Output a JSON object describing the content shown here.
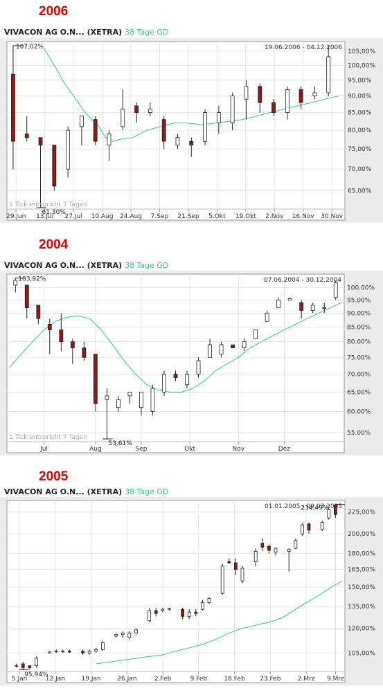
{
  "charts": [
    {
      "year_label": "2006",
      "title": "VIVACON AG O.N... (XETRA)",
      "ma_label": "38 Tage GD",
      "date_range": "19.06.2006 - 04.12.2006",
      "tick_note": "1 Tick entspricht 7 Tagen",
      "high_label": "107,02%",
      "low_label": "61,30%",
      "y_ticks": [
        "65,00%",
        "70,00%",
        "75,00%",
        "80,00%",
        "85,00%",
        "90,00%",
        "95,00%",
        "100,00%",
        "105,00%"
      ],
      "x_ticks": [
        "29.Jun",
        "13.Jul",
        "27.Jul",
        "10.Aug",
        "24.Aug",
        "7.Sep",
        "21.Sep",
        "5.Okt",
        "19.Okt",
        "2.Nov",
        "16.Nov",
        "30.Nov"
      ]
    },
    {
      "year_label": "2004",
      "title": "VIVACON AG O.N... (XETRA)",
      "ma_label": "38 Tage GD",
      "date_range": "07.06.2004 - 30.12.2004",
      "tick_note": "1 Tick entspricht 7 Tagen",
      "high_label": "103,92%",
      "low_label": "53,61%",
      "y_ticks": [
        "55.00%",
        "60.00%",
        "65.00%",
        "70.00%",
        "75.00%",
        "80.00%",
        "85.00%",
        "90.00%",
        "95.00%",
        "100.00%"
      ],
      "x_ticks": [
        "Jul",
        "Aug",
        "Sep",
        "Okt",
        "Nov",
        "Dez"
      ]
    },
    {
      "year_label": "2005",
      "title": "VIVACON AG O.N... (XETRA)",
      "ma_label": "38 Tage GD",
      "date_range": "01.01.2005 - 09.03.2005",
      "tick_note": "",
      "high_label": "234,49%",
      "low_label": "95,94%",
      "y_ticks": [
        "105,00%",
        "120,00%",
        "135,00%",
        "150,00%",
        "165,00%",
        "180,00%",
        "200,00%",
        "225,00%"
      ],
      "x_ticks": [
        "5.Jan",
        "12.Jan",
        "19.Jan",
        "26.Jan",
        "2.Feb",
        "9.Feb",
        "16.Feb",
        "23.Feb",
        "2.Mrz",
        "9.Mrz"
      ]
    }
  ],
  "chart_data": [
    {
      "type": "candlestick",
      "title": "VIVACON AG O.N... (XETRA)",
      "yscale": "log",
      "ylim": [
        61,
        107.5
      ],
      "colors": {
        "up": "#ffffff",
        "down": "#8b1a1a",
        "ma": "#33cc88"
      },
      "candles": [
        {
          "x": 0.5,
          "o": 97,
          "h": 107,
          "l": 70,
          "c": 77
        },
        {
          "x": 2.5,
          "o": 79,
          "h": 84,
          "l": 77,
          "c": 78
        },
        {
          "x": 4.5,
          "o": 78,
          "h": 78,
          "l": 61.3,
          "c": 76
        },
        {
          "x": 6.5,
          "o": 76,
          "h": 76,
          "l": 65,
          "c": 66
        },
        {
          "x": 8.5,
          "o": 70,
          "h": 81,
          "l": 68,
          "c": 80
        },
        {
          "x": 10.5,
          "o": 81,
          "h": 84,
          "l": 76,
          "c": 84
        },
        {
          "x": 12.5,
          "o": 83,
          "h": 84,
          "l": 76,
          "c": 77
        },
        {
          "x": 14.5,
          "o": 76,
          "h": 80,
          "l": 72,
          "c": 79
        },
        {
          "x": 16.5,
          "o": 81,
          "h": 92,
          "l": 80,
          "c": 86
        },
        {
          "x": 18.5,
          "o": 87,
          "h": 88,
          "l": 82,
          "c": 85
        },
        {
          "x": 20.5,
          "o": 85,
          "h": 88,
          "l": 84,
          "c": 86
        },
        {
          "x": 22.5,
          "o": 83,
          "h": 84,
          "l": 75,
          "c": 77
        },
        {
          "x": 24.5,
          "o": 76,
          "h": 79,
          "l": 75,
          "c": 78
        },
        {
          "x": 26.5,
          "o": 77,
          "h": 78,
          "l": 73,
          "c": 76
        },
        {
          "x": 28.5,
          "o": 77,
          "h": 86,
          "l": 76,
          "c": 85
        },
        {
          "x": 30.5,
          "o": 82,
          "h": 87,
          "l": 79,
          "c": 85
        },
        {
          "x": 32.5,
          "o": 82,
          "h": 91,
          "l": 80,
          "c": 90
        },
        {
          "x": 34.5,
          "o": 89,
          "h": 95,
          "l": 83,
          "c": 93
        },
        {
          "x": 36.5,
          "o": 93,
          "h": 94,
          "l": 85,
          "c": 88
        },
        {
          "x": 38.5,
          "o": 88,
          "h": 89,
          "l": 84,
          "c": 85
        },
        {
          "x": 40.5,
          "o": 85,
          "h": 93,
          "l": 83,
          "c": 92
        },
        {
          "x": 42.5,
          "o": 92,
          "h": 93,
          "l": 86,
          "c": 88
        },
        {
          "x": 44.5,
          "o": 90,
          "h": 93,
          "l": 89,
          "c": 91
        },
        {
          "x": 46.5,
          "o": 91,
          "h": 107,
          "l": 90,
          "c": 103
        }
      ],
      "ma": [
        [
          5,
          106
        ],
        [
          6,
          102
        ],
        [
          7,
          98
        ],
        [
          8,
          94
        ],
        [
          9,
          91
        ],
        [
          10,
          88
        ],
        [
          11,
          85
        ],
        [
          12,
          83
        ],
        [
          13,
          81
        ],
        [
          14,
          78
        ],
        [
          15,
          77
        ],
        [
          16,
          77.5
        ],
        [
          18,
          78
        ],
        [
          19,
          79
        ],
        [
          20,
          80
        ],
        [
          22,
          81
        ],
        [
          24,
          82
        ],
        [
          26,
          82
        ],
        [
          28,
          81.5
        ],
        [
          30,
          82
        ],
        [
          32,
          82.5
        ],
        [
          34,
          83
        ],
        [
          36,
          84
        ],
        [
          38,
          85
        ],
        [
          40,
          86
        ],
        [
          42,
          87
        ],
        [
          44,
          88
        ],
        [
          46,
          89
        ],
        [
          48,
          90
        ]
      ],
      "xlim": [
        0,
        48.5
      ]
    },
    {
      "type": "candlestick",
      "title": "VIVACON AG O.N... (XETRA)",
      "yscale": "log",
      "ylim": [
        53,
        104.5
      ],
      "colors": {
        "up": "#ffffff",
        "down": "#8b1a1a",
        "ma": "#33cc88"
      },
      "candles": [
        {
          "x": 1,
          "o": 101,
          "h": 104,
          "l": 98,
          "c": 103
        },
        {
          "x": 3,
          "o": 101,
          "h": 101,
          "l": 88,
          "c": 92
        },
        {
          "x": 5,
          "o": 93,
          "h": 93,
          "l": 86,
          "c": 88
        },
        {
          "x": 7,
          "o": 86,
          "h": 88,
          "l": 76,
          "c": 84
        },
        {
          "x": 9,
          "o": 84,
          "h": 90,
          "l": 77,
          "c": 80
        },
        {
          "x": 11,
          "o": 80,
          "h": 81,
          "l": 73,
          "c": 78
        },
        {
          "x": 13,
          "o": 78,
          "h": 80,
          "l": 74,
          "c": 75
        },
        {
          "x": 15,
          "o": 76,
          "h": 76,
          "l": 60,
          "c": 62
        },
        {
          "x": 17,
          "o": 63,
          "h": 66,
          "l": 53.6,
          "c": 64
        },
        {
          "x": 19,
          "o": 61,
          "h": 64,
          "l": 60,
          "c": 63
        },
        {
          "x": 21,
          "o": 64,
          "h": 65,
          "l": 62,
          "c": 65
        },
        {
          "x": 23,
          "o": 61,
          "h": 65,
          "l": 59,
          "c": 65
        },
        {
          "x": 25,
          "o": 60,
          "h": 67,
          "l": 59,
          "c": 66
        },
        {
          "x": 27,
          "o": 65,
          "h": 71,
          "l": 64,
          "c": 70
        },
        {
          "x": 29,
          "o": 70,
          "h": 71,
          "l": 68,
          "c": 69
        },
        {
          "x": 31,
          "o": 67,
          "h": 71,
          "l": 66,
          "c": 70
        },
        {
          "x": 33,
          "o": 70,
          "h": 75,
          "l": 69,
          "c": 74
        },
        {
          "x": 35,
          "o": 75,
          "h": 81,
          "l": 75,
          "c": 79
        },
        {
          "x": 37,
          "o": 76,
          "h": 80,
          "l": 75,
          "c": 79
        },
        {
          "x": 39,
          "o": 79,
          "h": 79,
          "l": 78,
          "c": 78
        },
        {
          "x": 41,
          "o": 78,
          "h": 81,
          "l": 77,
          "c": 80
        },
        {
          "x": 43,
          "o": 81,
          "h": 84,
          "l": 81,
          "c": 84
        },
        {
          "x": 45,
          "o": 87,
          "h": 91,
          "l": 87,
          "c": 90
        },
        {
          "x": 47,
          "o": 92,
          "h": 96,
          "l": 92,
          "c": 95
        },
        {
          "x": 49,
          "o": 95,
          "h": 96,
          "l": 95,
          "c": 95.5
        },
        {
          "x": 51,
          "o": 94,
          "h": 95,
          "l": 88,
          "c": 91
        },
        {
          "x": 53,
          "o": 91,
          "h": 94,
          "l": 90,
          "c": 93
        },
        {
          "x": 55,
          "o": 92,
          "h": 94,
          "l": 90,
          "c": 92
        },
        {
          "x": 57,
          "o": 96,
          "h": 103,
          "l": 95,
          "c": 102
        }
      ],
      "ma": [
        [
          0,
          72
        ],
        [
          2,
          76
        ],
        [
          4,
          80
        ],
        [
          6,
          84
        ],
        [
          8,
          87
        ],
        [
          10,
          88.5
        ],
        [
          12,
          89
        ],
        [
          14,
          88
        ],
        [
          16,
          84
        ],
        [
          18,
          79
        ],
        [
          20,
          74
        ],
        [
          22,
          70
        ],
        [
          24,
          67
        ],
        [
          26,
          65.5
        ],
        [
          28,
          65
        ],
        [
          30,
          65
        ],
        [
          32,
          66
        ],
        [
          34,
          68
        ],
        [
          36,
          71
        ],
        [
          38,
          73
        ],
        [
          40,
          75
        ],
        [
          42,
          78
        ],
        [
          44,
          80
        ],
        [
          46,
          82
        ],
        [
          48,
          84
        ],
        [
          50,
          86
        ],
        [
          52,
          88
        ],
        [
          54,
          90
        ],
        [
          56,
          92
        ],
        [
          58,
          94
        ]
      ],
      "xlim": [
        0,
        58
      ]
    },
    {
      "type": "candlestick",
      "title": "VIVACON AG O.N... (XETRA)",
      "yscale": "log",
      "ylim": [
        95,
        236
      ],
      "colors": {
        "up": "#ffffff",
        "down": "#8b1a1a",
        "ma": "#33cc88"
      },
      "candles": [
        {
          "x": 1,
          "o": 98,
          "h": 99,
          "l": 97,
          "c": 98
        },
        {
          "x": 2,
          "o": 99,
          "h": 100,
          "l": 96,
          "c": 97
        },
        {
          "x": 3,
          "o": 98,
          "h": 98,
          "l": 96,
          "c": 97
        },
        {
          "x": 4,
          "o": 98,
          "h": 103,
          "l": 97,
          "c": 102
        },
        {
          "x": 6,
          "o": 105,
          "h": 106,
          "l": 105,
          "c": 105.5
        },
        {
          "x": 7,
          "o": 106,
          "h": 107,
          "l": 105,
          "c": 106
        },
        {
          "x": 8,
          "o": 106,
          "h": 107,
          "l": 105,
          "c": 106
        },
        {
          "x": 9,
          "o": 106,
          "h": 107,
          "l": 105,
          "c": 105.5
        },
        {
          "x": 11,
          "o": 106,
          "h": 107,
          "l": 104,
          "c": 105
        },
        {
          "x": 12,
          "o": 105,
          "h": 107,
          "l": 104,
          "c": 106
        },
        {
          "x": 13,
          "o": 106,
          "h": 108,
          "l": 105,
          "c": 107
        },
        {
          "x": 14,
          "o": 107,
          "h": 112,
          "l": 106,
          "c": 111
        },
        {
          "x": 16,
          "o": 115,
          "h": 117,
          "l": 114,
          "c": 116
        },
        {
          "x": 17,
          "o": 116,
          "h": 118,
          "l": 114,
          "c": 117
        },
        {
          "x": 18,
          "o": 114,
          "h": 118,
          "l": 113,
          "c": 117
        },
        {
          "x": 19,
          "o": 117,
          "h": 120,
          "l": 116,
          "c": 119
        },
        {
          "x": 21,
          "o": 125,
          "h": 134,
          "l": 124,
          "c": 132
        },
        {
          "x": 22,
          "o": 132,
          "h": 134,
          "l": 128,
          "c": 130
        },
        {
          "x": 23,
          "o": 132,
          "h": 134,
          "l": 131,
          "c": 133
        },
        {
          "x": 24,
          "o": 133,
          "h": 134,
          "l": 132,
          "c": 133.5
        },
        {
          "x": 26,
          "o": 133,
          "h": 134,
          "l": 126,
          "c": 128
        },
        {
          "x": 27,
          "o": 128,
          "h": 133,
          "l": 126,
          "c": 131
        },
        {
          "x": 28,
          "o": 131,
          "h": 133,
          "l": 128,
          "c": 130
        },
        {
          "x": 29,
          "o": 133,
          "h": 140,
          "l": 132,
          "c": 138
        },
        {
          "x": 30,
          "o": 138,
          "h": 142,
          "l": 137,
          "c": 141
        },
        {
          "x": 32,
          "o": 145,
          "h": 170,
          "l": 144,
          "c": 168
        },
        {
          "x": 33,
          "o": 172,
          "h": 175,
          "l": 170,
          "c": 171
        },
        {
          "x": 34,
          "o": 171,
          "h": 175,
          "l": 160,
          "c": 165
        },
        {
          "x": 35,
          "o": 155,
          "h": 168,
          "l": 153,
          "c": 166
        },
        {
          "x": 37,
          "o": 172,
          "h": 185,
          "l": 168,
          "c": 182
        },
        {
          "x": 38,
          "o": 190,
          "h": 195,
          "l": 182,
          "c": 186
        },
        {
          "x": 39,
          "o": 187,
          "h": 189,
          "l": 180,
          "c": 183
        },
        {
          "x": 40,
          "o": 181,
          "h": 186,
          "l": 178,
          "c": 185
        },
        {
          "x": 42,
          "o": 182,
          "h": 185,
          "l": 163,
          "c": 184
        },
        {
          "x": 43,
          "o": 185,
          "h": 195,
          "l": 184,
          "c": 193
        },
        {
          "x": 44,
          "o": 200,
          "h": 212,
          "l": 198,
          "c": 210
        },
        {
          "x": 45,
          "o": 211,
          "h": 213,
          "l": 200,
          "c": 204
        },
        {
          "x": 47,
          "o": 205,
          "h": 215,
          "l": 203,
          "c": 213
        },
        {
          "x": 48,
          "o": 218,
          "h": 230,
          "l": 216,
          "c": 228
        },
        {
          "x": 49,
          "o": 234,
          "h": 234.5,
          "l": 218,
          "c": 222
        }
      ],
      "ma": [
        [
          13,
          99
        ],
        [
          15,
          100
        ],
        [
          17,
          101
        ],
        [
          19,
          102
        ],
        [
          21,
          103
        ],
        [
          23,
          104
        ],
        [
          25,
          106
        ],
        [
          27,
          108
        ],
        [
          29,
          110
        ],
        [
          31,
          113
        ],
        [
          33,
          117
        ],
        [
          35,
          120
        ],
        [
          37,
          122
        ],
        [
          39,
          124
        ],
        [
          41,
          127
        ],
        [
          43,
          133
        ],
        [
          45,
          139
        ],
        [
          47,
          145
        ],
        [
          49,
          152
        ],
        [
          50,
          155
        ]
      ],
      "xlim": [
        0,
        50
      ]
    }
  ]
}
